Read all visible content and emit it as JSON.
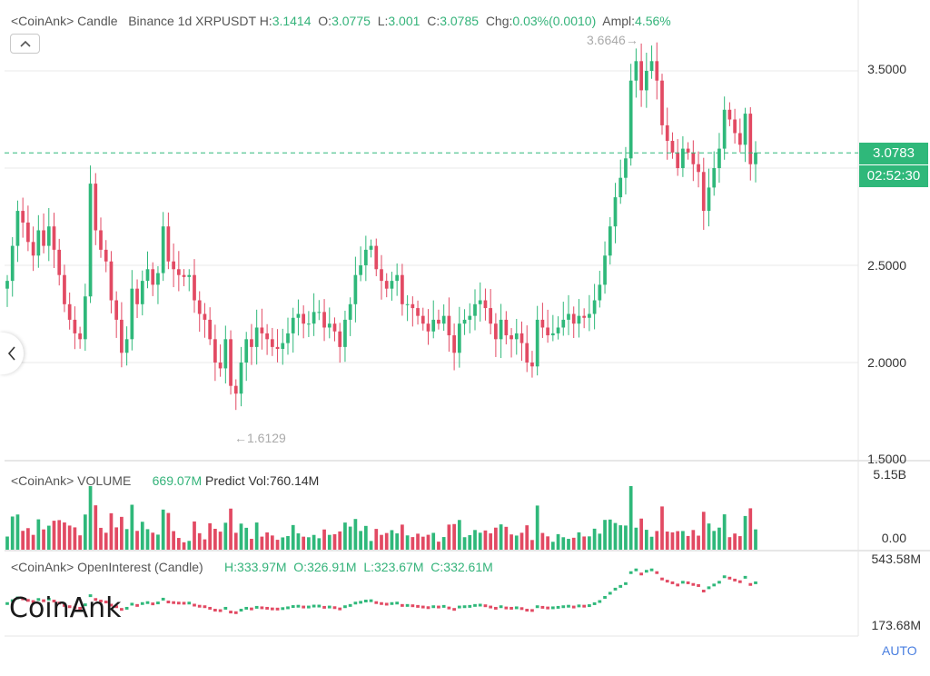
{
  "header": {
    "prefix": "<CoinAnk> Candle",
    "exchange": "Binance 1d XRPUSDT",
    "h_label": "H:",
    "h_val": "3.1414",
    "o_label": "O:",
    "o_val": "3.0775",
    "l_label": "L:",
    "l_val": "3.001",
    "c_label": "C:",
    "c_val": "3.0785",
    "chg_label": "Chg:",
    "chg_val": "0.03%(0.0010)",
    "ampl_label": "Ampl:",
    "ampl_val": "4.56%"
  },
  "price_axis": {
    "ticks": [
      "3.5000",
      "2.5000",
      "2.0000",
      "1.5000"
    ]
  },
  "last_price": "3.0783",
  "countdown": "02:52:30",
  "annotations": {
    "high": "3.6646",
    "low": "1.6129"
  },
  "volume_panel": {
    "title": "<CoinAnk> VOLUME",
    "vol": "669.07M",
    "predict": "Predict Vol:760.14M",
    "axis_top": "5.15B",
    "axis_bottom": "0.00"
  },
  "oi_panel": {
    "title": "<CoinAnk> OpenInterest (Candle)",
    "h": "H:333.97M",
    "o": "O:326.91M",
    "l": "L:323.67M",
    "c": "C:332.61M",
    "axis_top": "543.58M",
    "axis_bottom": "173.68M"
  },
  "watermark": "CoinAnk",
  "auto_label": "AUTO",
  "colors": {
    "up": "#2fb87a",
    "down": "#e24a63",
    "grid": "#e8e8e8",
    "dash": "#2fb87a"
  },
  "chart_data": [
    {
      "type": "candlestick",
      "title": "Binance 1d XRPUSDT",
      "ylim": [
        1.5,
        3.8
      ],
      "y_ticks": [
        1.5,
        2.0,
        2.5,
        3.0,
        3.5
      ],
      "last_close": 3.0783,
      "high": 3.6646,
      "low": 1.6129,
      "closes": [
        2.42,
        2.6,
        2.78,
        2.72,
        2.62,
        2.55,
        2.68,
        2.6,
        2.7,
        2.58,
        2.45,
        2.3,
        2.22,
        2.15,
        2.12,
        2.34,
        2.92,
        2.68,
        2.58,
        2.52,
        2.32,
        2.22,
        2.05,
        2.12,
        2.38,
        2.3,
        2.42,
        2.48,
        2.4,
        2.46,
        2.7,
        2.52,
        2.48,
        2.45,
        2.44,
        2.45,
        2.32,
        2.25,
        2.22,
        2.12,
        2.0,
        1.97,
        2.12,
        1.88,
        1.84,
        2.0,
        2.12,
        2.08,
        2.18,
        2.15,
        2.12,
        2.08,
        2.07,
        2.1,
        2.15,
        2.23,
        2.25,
        2.2,
        2.2,
        2.26,
        2.26,
        2.18,
        2.2,
        2.16,
        2.08,
        2.22,
        2.3,
        2.45,
        2.5,
        2.58,
        2.6,
        2.48,
        2.42,
        2.38,
        2.42,
        2.45,
        2.3,
        2.3,
        2.28,
        2.24,
        2.2,
        2.16,
        2.22,
        2.2,
        2.24,
        2.14,
        2.05,
        2.2,
        2.22,
        2.24,
        2.3,
        2.32,
        2.28,
        2.2,
        2.12,
        2.22,
        2.14,
        2.12,
        2.15,
        2.1,
        2.0,
        1.98,
        2.22,
        2.18,
        2.14,
        2.15,
        2.18,
        2.22,
        2.25,
        2.2,
        2.24,
        2.23,
        2.25,
        2.32,
        2.4,
        2.55,
        2.7,
        2.85,
        2.95,
        3.05,
        3.45,
        3.55,
        3.4,
        3.5,
        3.55,
        3.45,
        3.22,
        3.14,
        3.08,
        3.0,
        3.1,
        3.08,
        3.02,
        2.98,
        2.78,
        2.9,
        3.0,
        3.1,
        3.3,
        3.25,
        3.18,
        3.12,
        3.28,
        3.02,
        3.08
      ],
      "volume_ylim": [
        0,
        5.15
      ],
      "volume_unit": "B",
      "open_interest_ylim": [
        173.68,
        543.58
      ],
      "open_interest_unit": "M"
    }
  ]
}
